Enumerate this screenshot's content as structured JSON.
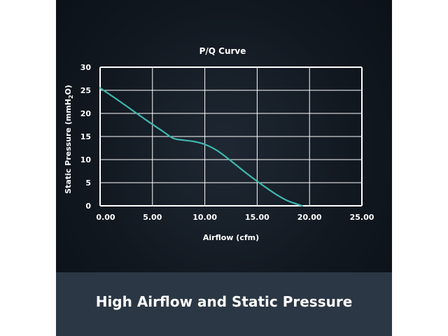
{
  "banner": {
    "caption": "High Airflow and Static Pressure"
  },
  "colors": {
    "background": "#111820",
    "banner": "#2b3744",
    "grid": "#ffffff",
    "curve": "#3fb8b0"
  },
  "chart_data": {
    "type": "line",
    "title": "P/Q Curve",
    "xlabel": "Airflow (cfm)",
    "ylabel_parts": [
      "Static Pressure (mmH",
      "2",
      "O)"
    ],
    "xlim": [
      0,
      25
    ],
    "ylim": [
      0,
      30
    ],
    "x_ticks": [
      0,
      5,
      10,
      15,
      20,
      25
    ],
    "x_tick_labels": [
      "0.00",
      "5.00",
      "10.00",
      "15.00",
      "20.00",
      "25.00"
    ],
    "y_ticks": [
      0,
      5,
      10,
      15,
      20,
      25,
      30
    ],
    "y_tick_labels": [
      "0",
      "5",
      "10",
      "15",
      "20",
      "25",
      "30"
    ],
    "grid": true,
    "series": [
      {
        "x": [
          0,
          1.5,
          3,
          4.5,
          6,
          7,
          8,
          9,
          10,
          11,
          12,
          13,
          14,
          15,
          16,
          17,
          18,
          19.3
        ],
        "y": [
          25.5,
          23.2,
          20.8,
          18.4,
          16.1,
          14.6,
          14.2,
          13.9,
          13.3,
          12.2,
          10.6,
          8.8,
          7.0,
          5.3,
          3.7,
          2.2,
          1.0,
          0
        ]
      }
    ]
  }
}
